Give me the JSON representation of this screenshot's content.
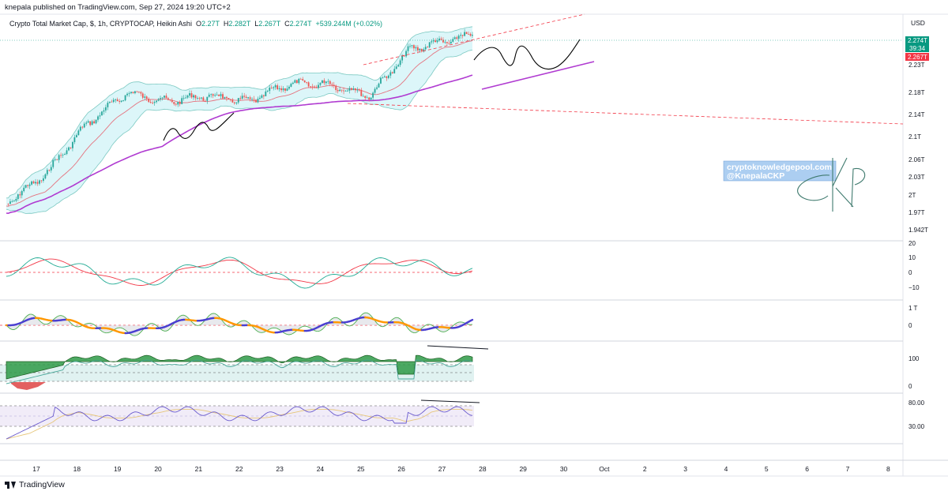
{
  "header": {
    "published_text": "knepala published on TradingView.com, Sep 27, 2024 19:20 UTC+2"
  },
  "legend": {
    "symbol": "Crypto Total Market Cap, $, 1h, CRYPTOCAP, Heikin Ashi",
    "o_label": "O",
    "o_value": "2.27T",
    "h_label": "H",
    "h_value": "2.282T",
    "l_label": "L",
    "l_value": "2.267T",
    "c_label": "C",
    "c_value": "2.274T",
    "change": "+539.244M (+0.02%)"
  },
  "price_axis": {
    "currency": "USD",
    "current_price_tag": "2.274T",
    "countdown_tag": "39:34",
    "low_tag": "2.267T",
    "colors": {
      "current": "#089981",
      "low": "#f23645"
    }
  },
  "watermark": {
    "line1": "cryptoknowledgepool.com",
    "line2": "@KnepalaCKP"
  },
  "footer": {
    "brand": "TradingView"
  },
  "chart_data": [
    {
      "type": "candlestick",
      "style": "Heikin Ashi",
      "timeframe": "1h",
      "x_ticks": [
        "17",
        "18",
        "19",
        "20",
        "21",
        "22",
        "23",
        "24",
        "25",
        "26",
        "27",
        "28",
        "29",
        "30",
        "Oct",
        "2",
        "3",
        "4",
        "5",
        "6",
        "7",
        "8"
      ],
      "y_ticks": [
        "2.23T",
        "2.18T",
        "2.14T",
        "2.1T",
        "2.06T",
        "2.03T",
        "2T",
        "1.97T",
        "1.942T"
      ],
      "approx_close_path": [
        {
          "x": "17",
          "y": 1.985
        },
        {
          "x": "18",
          "y": 2.035
        },
        {
          "x": "19",
          "y": 2.12
        },
        {
          "x": "20",
          "y": 2.175
        },
        {
          "x": "21",
          "y": 2.16
        },
        {
          "x": "22",
          "y": 2.17
        },
        {
          "x": "23",
          "y": 2.16
        },
        {
          "x": "24",
          "y": 2.19
        },
        {
          "x": "25",
          "y": 2.19
        },
        {
          "x": "26",
          "y": 2.17
        },
        {
          "x": "27",
          "y": 2.25
        },
        {
          "x": "28",
          "y": 2.274
        }
      ],
      "overlays": [
        "bollinger-bands",
        "moving-average",
        "trend-channel-lines",
        "projected-path-drawings"
      ]
    },
    {
      "type": "line",
      "pane": "oscillator-1",
      "y_ticks": [
        "20",
        "10",
        "0",
        "−10"
      ],
      "series_colors": [
        "#f23645",
        "#22ab94"
      ]
    },
    {
      "type": "line",
      "pane": "oscillator-2",
      "y_ticks": [
        "1 T",
        "0"
      ],
      "series_colors": [
        "#5a4fcf",
        "#ff9800",
        "#4caf50",
        "#f23645"
      ]
    },
    {
      "type": "area",
      "pane": "oscillator-3",
      "y_ticks": [
        "100",
        "0"
      ],
      "series_colors": [
        "#2e7d32",
        "#b2dfdb"
      ]
    },
    {
      "type": "line",
      "pane": "rsi",
      "y_ticks": [
        "80.00",
        "30.00"
      ],
      "series_colors": [
        "#6a5acd",
        "#e6c67a"
      ]
    }
  ]
}
